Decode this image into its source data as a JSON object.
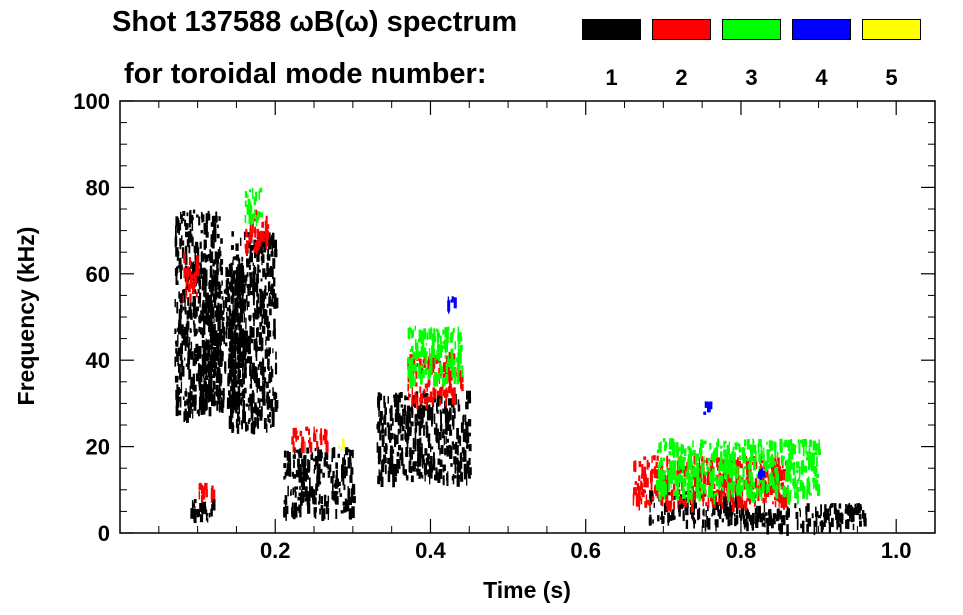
{
  "title_line1": "Shot 137588 ωB(ω) spectrum",
  "title_line2": "for toroidal mode number:",
  "legend": [
    {
      "label": "1",
      "color": "#000000"
    },
    {
      "label": "2",
      "color": "#ff0000"
    },
    {
      "label": "3",
      "color": "#00ff00"
    },
    {
      "label": "4",
      "color": "#0000ff"
    },
    {
      "label": "5",
      "color": "#ffff00"
    }
  ],
  "chart_data": {
    "type": "scatter",
    "title": "Shot 137588 ωB(ω) spectrum",
    "xlabel": "Time (s)",
    "ylabel": "Frequency (kHz)",
    "xlim": [
      0.0,
      1.05
    ],
    "ylim": [
      0,
      100
    ],
    "xticks": [
      0.2,
      0.4,
      0.6,
      0.8,
      1.0
    ],
    "xticklabels": [
      "0.2",
      "0.4",
      "0.6",
      "0.8",
      "1.0"
    ],
    "yticks": [
      0,
      20,
      40,
      60,
      80,
      100
    ],
    "yticklabels": [
      "0",
      "20",
      "40",
      "60",
      "80",
      "100"
    ],
    "grid": false,
    "series": [
      {
        "name": "n=1",
        "color": "#000000",
        "regions": [
          {
            "t0": 0.07,
            "t1": 0.13,
            "f0": 28,
            "f1": 75
          },
          {
            "t0": 0.1,
            "t1": 0.16,
            "f0": 30,
            "f1": 62
          },
          {
            "t0": 0.14,
            "t1": 0.2,
            "f0": 25,
            "f1": 70
          },
          {
            "t0": 0.21,
            "t1": 0.3,
            "f0": 5,
            "f1": 20
          },
          {
            "t0": 0.33,
            "t1": 0.45,
            "f0": 13,
            "f1": 33
          },
          {
            "t0": 0.68,
            "t1": 0.8,
            "f0": 3,
            "f1": 10
          },
          {
            "t0": 0.8,
            "t1": 0.96,
            "f0": 2,
            "f1": 7
          },
          {
            "t0": 0.09,
            "t1": 0.12,
            "f0": 3,
            "f1": 8
          }
        ]
      },
      {
        "name": "n=2",
        "color": "#ff0000",
        "regions": [
          {
            "t0": 0.16,
            "t1": 0.19,
            "f0": 66,
            "f1": 75
          },
          {
            "t0": 0.22,
            "t1": 0.27,
            "f0": 21,
            "f1": 25
          },
          {
            "t0": 0.37,
            "t1": 0.44,
            "f0": 31,
            "f1": 42
          },
          {
            "t0": 0.66,
            "t1": 0.86,
            "f0": 7,
            "f1": 18
          },
          {
            "t0": 0.1,
            "t1": 0.12,
            "f0": 8,
            "f1": 12
          },
          {
            "t0": 0.08,
            "t1": 0.1,
            "f0": 55,
            "f1": 65
          }
        ]
      },
      {
        "name": "n=3",
        "color": "#00ff00",
        "regions": [
          {
            "t0": 0.16,
            "t1": 0.18,
            "f0": 73,
            "f1": 80
          },
          {
            "t0": 0.37,
            "t1": 0.44,
            "f0": 36,
            "f1": 48
          },
          {
            "t0": 0.69,
            "t1": 0.9,
            "f0": 9,
            "f1": 22
          }
        ]
      },
      {
        "name": "n=4",
        "color": "#0000ff",
        "regions": [
          {
            "t0": 0.75,
            "t1": 0.76,
            "f0": 28,
            "f1": 31
          },
          {
            "t0": 0.42,
            "t1": 0.43,
            "f0": 53,
            "f1": 55
          },
          {
            "t0": 0.82,
            "t1": 0.83,
            "f0": 13,
            "f1": 15
          }
        ]
      },
      {
        "name": "n=5",
        "color": "#ffff00",
        "regions": [
          {
            "t0": 0.28,
            "t1": 0.29,
            "f0": 20,
            "f1": 22
          }
        ]
      }
    ]
  }
}
